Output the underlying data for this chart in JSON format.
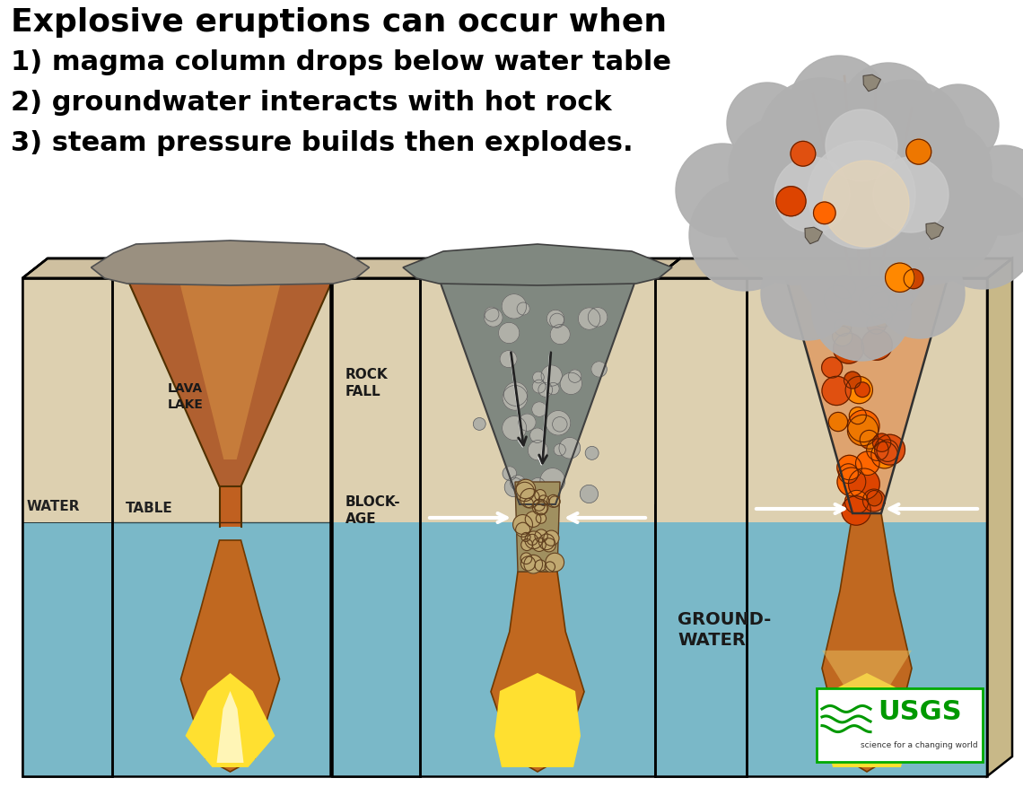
{
  "title_line1": "Explosive eruptions can occur when",
  "title_line2": "1) magma column drops below water table",
  "title_line3": "2) groundwater interacts with hot rock",
  "title_line4": "3) steam pressure builds then explodes.",
  "bg_color": "#ffffff",
  "sand_color": "#ddd0b0",
  "sand_side": "#c8b888",
  "sand_top": "#cfc0a0",
  "water_color": "#7ab8c8",
  "water_side": "#5a9aae",
  "water_top": "#6aaabb",
  "wall_color": "#c8bca8",
  "wall_side": "#b0a090",
  "magma_orange": "#d06820",
  "magma_dark": "#904000",
  "magma_light": "#e08030",
  "lava_yellow": "#ffe030",
  "lava_bright": "#ffff80",
  "rock_gray": "#909090",
  "rock_dark": "#606060",
  "smoke_gray": "#aaaaaa",
  "smoke_dark": "#909090"
}
